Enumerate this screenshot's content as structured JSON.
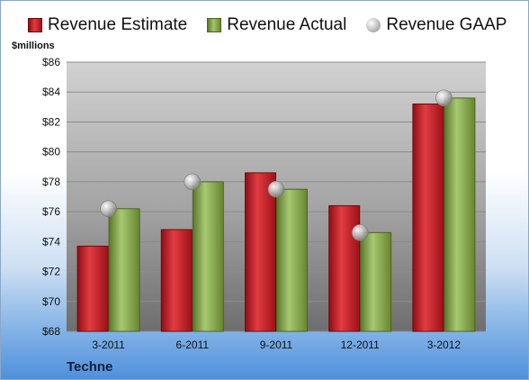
{
  "chart_data": {
    "type": "bar",
    "categories": [
      "3-2011",
      "6-2011",
      "9-2011",
      "12-2011",
      "3-2012"
    ],
    "series": [
      {
        "name": "Revenue Estimate",
        "type": "bar",
        "values": [
          73.7,
          74.8,
          78.6,
          76.4,
          83.2
        ]
      },
      {
        "name": "Revenue Actual",
        "type": "bar",
        "values": [
          76.2,
          78.0,
          77.5,
          74.6,
          83.6
        ]
      },
      {
        "name": "Revenue GAAP",
        "type": "marker",
        "values": [
          76.2,
          78.0,
          77.5,
          74.6,
          83.6
        ]
      }
    ],
    "ylabel": "$millions",
    "ylim": [
      68,
      86
    ],
    "yticks": [
      "$68",
      "$70",
      "$72",
      "$74",
      "$76",
      "$78",
      "$80",
      "$82",
      "$84",
      "$86"
    ],
    "grid": true,
    "legend_position": "top",
    "company": "Techne",
    "colors": {
      "estimate": "#c81e25",
      "actual": "#8fb35a",
      "gaap": "#b9b9b9",
      "frame_border": "#8aa8c8"
    }
  }
}
